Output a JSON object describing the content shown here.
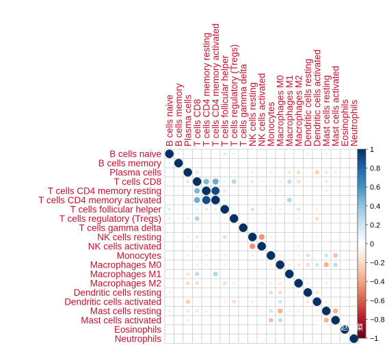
{
  "chart_data": {
    "type": "heatmap",
    "variables": [
      "B cells naive",
      "B cells memory",
      "Plasma cells",
      "T cells CD8",
      "T cells CD4 memory resting",
      "T cells CD4 memory activated",
      "T cells follicular helper",
      "T cells regulatory (Tregs)",
      "T cells gamma delta",
      "NK cells resting",
      "NK cells activated",
      "Monocytes",
      "Macrophages M0",
      "Macrophages M1",
      "Macrophages M2",
      "Dendritic cells resting",
      "Dendritic cells activated",
      "Mast cells resting",
      "Mast cells activated",
      "Eosinophils",
      "Neutrophils"
    ],
    "matrix": [
      [
        1,
        0.1,
        0.05,
        0.05,
        0.05,
        0.05,
        0.15,
        0.1,
        0.05,
        0.05,
        0,
        0.05,
        -0.05,
        0.05,
        0,
        0.1,
        0.05,
        0.1,
        0,
        0,
        0
      ],
      [
        0.1,
        1,
        0.05,
        0.05,
        0.05,
        0.05,
        0.05,
        0.05,
        0,
        0,
        0,
        0,
        0,
        0,
        0.05,
        0,
        0.05,
        0,
        0,
        0,
        0
      ],
      [
        0.05,
        0.05,
        1,
        0.15,
        0.05,
        0,
        0.05,
        0.1,
        0,
        0.1,
        0.05,
        -0.1,
        0,
        -0.15,
        -0.2,
        0.05,
        -0.25,
        -0.15,
        -0.1,
        0,
        0
      ],
      [
        0.05,
        0.05,
        0.15,
        1,
        0.45,
        0.5,
        0.1,
        0.3,
        0.05,
        0.15,
        0.1,
        -0.05,
        -0.1,
        0.25,
        -0.2,
        0.05,
        0.05,
        -0.15,
        -0.05,
        -0.05,
        0
      ],
      [
        0.05,
        0.05,
        0.05,
        0.45,
        1,
        0.9,
        -0.15,
        0.05,
        -0.05,
        0.05,
        0.05,
        0.1,
        0.1,
        0.05,
        -0.05,
        0.05,
        0.05,
        0.1,
        0,
        0,
        0
      ],
      [
        0.05,
        0.05,
        0,
        0.5,
        0.9,
        1,
        0.1,
        0.05,
        0.05,
        0.05,
        0.05,
        0.05,
        -0.05,
        0.3,
        -0.05,
        0.05,
        0.05,
        0.05,
        0,
        0,
        0
      ],
      [
        0.15,
        0.05,
        0.05,
        0.1,
        -0.15,
        0.1,
        1,
        0.05,
        0,
        0.2,
        0.05,
        -0.1,
        0.1,
        0.05,
        -0.2,
        0.05,
        -0.1,
        -0.05,
        0,
        0,
        0
      ],
      [
        0.1,
        0.05,
        0.1,
        0.3,
        0.05,
        0.05,
        0.05,
        1,
        0,
        0.05,
        0.05,
        -0.05,
        0.05,
        0.05,
        -0.1,
        0.05,
        -0.2,
        -0.05,
        0,
        0,
        0
      ],
      [
        0.05,
        0,
        0,
        0.05,
        -0.05,
        0.05,
        0,
        0,
        1,
        0.05,
        0,
        0,
        0,
        0,
        0,
        0,
        0,
        0.05,
        0,
        0,
        0
      ],
      [
        0.05,
        0,
        0.1,
        0.15,
        0.05,
        0.05,
        0.2,
        0.05,
        0.05,
        1,
        -0.45,
        -0.1,
        -0.05,
        0.05,
        0.05,
        0.05,
        0.1,
        -0.05,
        0,
        0,
        0
      ],
      [
        0,
        0,
        0.05,
        0.1,
        0.05,
        0.05,
        0.05,
        0.05,
        0,
        -0.45,
        1,
        0.05,
        0.05,
        0.05,
        -0.1,
        0.05,
        -0.05,
        0.05,
        0,
        0,
        0
      ],
      [
        0.05,
        0,
        -0.1,
        -0.05,
        0.1,
        0.05,
        -0.1,
        -0.05,
        0,
        -0.1,
        0.05,
        1,
        -0.1,
        0.05,
        -0.1,
        0.2,
        -0.05,
        0.2,
        -0.3,
        0,
        0
      ],
      [
        -0.05,
        0,
        0,
        -0.1,
        0.1,
        -0.05,
        0.1,
        0.05,
        0,
        -0.05,
        0.05,
        -0.1,
        1,
        -0.1,
        -0.15,
        -0.2,
        0.2,
        -0.35,
        0.25,
        0,
        0
      ],
      [
        0.05,
        0,
        -0.15,
        0.25,
        0.05,
        0.3,
        0.05,
        0.05,
        0,
        0.05,
        0.05,
        0.05,
        -0.1,
        1,
        0.05,
        0.05,
        0.05,
        -0.1,
        0,
        0,
        0
      ],
      [
        0,
        0.05,
        -0.2,
        -0.2,
        -0.05,
        -0.05,
        -0.2,
        -0.1,
        0,
        0.05,
        -0.1,
        -0.1,
        -0.15,
        0.05,
        1,
        -0.1,
        0.05,
        -0.1,
        0.05,
        0,
        0
      ],
      [
        0.1,
        0,
        0.05,
        0.05,
        0.05,
        0.05,
        0.05,
        0.05,
        0,
        0.05,
        0.05,
        0.2,
        -0.2,
        0.05,
        -0.1,
        1,
        -0.15,
        0.05,
        0.05,
        0,
        0
      ],
      [
        0.05,
        0.05,
        -0.25,
        0.05,
        0.05,
        0.05,
        -0.1,
        -0.2,
        0,
        0.1,
        -0.05,
        -0.05,
        0.2,
        0.05,
        0.05,
        -0.15,
        1,
        -0.1,
        0.05,
        0,
        0
      ],
      [
        0.1,
        0,
        -0.15,
        -0.15,
        0.1,
        0.05,
        -0.05,
        -0.05,
        0.05,
        -0.05,
        0.05,
        0.2,
        -0.35,
        -0.1,
        -0.1,
        0.05,
        -0.1,
        1,
        -0.35,
        0,
        0
      ],
      [
        0,
        0,
        -0.1,
        -0.05,
        0,
        0,
        0,
        0,
        0,
        0,
        0,
        -0.3,
        0.25,
        0,
        0.05,
        0.05,
        0.05,
        -0.35,
        1,
        0,
        0
      ],
      [
        0,
        0,
        0,
        -0.05,
        0,
        0,
        0,
        0,
        0,
        0,
        0,
        0,
        0,
        0,
        0,
        0,
        0,
        0,
        0,
        1,
        0
      ],
      [
        0,
        0,
        0,
        0,
        0,
        0,
        0,
        0,
        0,
        0,
        0,
        0,
        0,
        0,
        0,
        0,
        0,
        0,
        0,
        0,
        1
      ]
    ],
    "color_scale": {
      "min": -1,
      "max": 1,
      "ticks": [
        1,
        0.8,
        0.6,
        0.4,
        0.2,
        0,
        -0.2,
        -0.4,
        -0.6,
        -0.8,
        -1
      ],
      "tick_labels": [
        "1",
        "0.8",
        "0.6",
        "0.4",
        "0.2",
        "0",
        "−0.2",
        "−0.4",
        "−0.6",
        "−0.8",
        "−1"
      ],
      "colors": [
        "#67001F",
        "#B2182B",
        "#D6604D",
        "#F4A582",
        "#FDDBC7",
        "#FFFFFF",
        "#D1E5F0",
        "#92C5DE",
        "#4393C3",
        "#2166AC",
        "#053061"
      ]
    },
    "grid": true,
    "legend": "right",
    "label_color": "#c8102e"
  },
  "watermark": "知乎 @赵燕菜"
}
